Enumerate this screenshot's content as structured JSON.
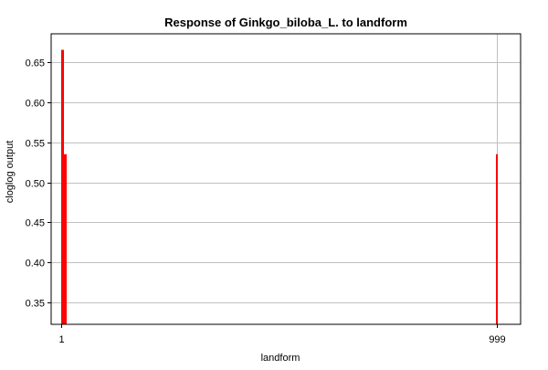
{
  "chart_data": {
    "type": "bar",
    "title": "Response of Ginkgo_biloba_L. to landform",
    "xlabel": "landform",
    "ylabel": "cloglog output",
    "x_ticks": [
      "1",
      "999"
    ],
    "ylim": [
      0.323,
      0.685
    ],
    "y_ticks": [
      0.35,
      0.4,
      0.45,
      0.5,
      0.55,
      0.6,
      0.65
    ],
    "y_tick_labels": [
      "0.35",
      "0.40",
      "0.45",
      "0.50",
      "0.55",
      "0.60",
      "0.65"
    ],
    "grid": true,
    "bar_color": "#ff0000",
    "bars": [
      {
        "x": "1",
        "value": 0.665
      },
      {
        "x": "2",
        "value": 0.535
      },
      {
        "x": "999",
        "value": 0.535
      }
    ]
  }
}
